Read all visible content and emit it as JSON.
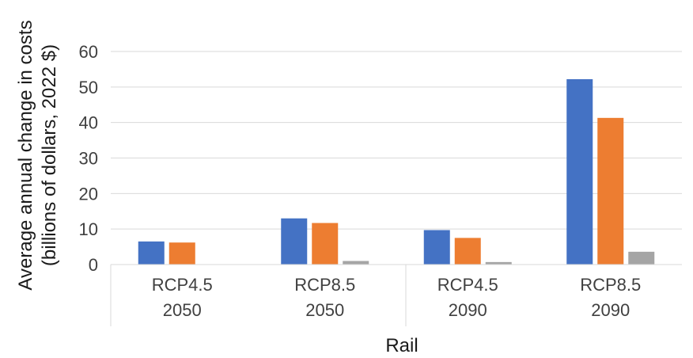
{
  "chart_data": {
    "type": "bar",
    "categories": [
      [
        "RCP4.5",
        "2050"
      ],
      [
        "RCP8.5",
        "2050"
      ],
      [
        "RCP4.5",
        "2090"
      ],
      [
        "RCP8.5",
        "2090"
      ]
    ],
    "series": [
      {
        "color": "#4472C4",
        "values": [
          6.5,
          13,
          9.7,
          52.2
        ]
      },
      {
        "color": "#ED7D31",
        "values": [
          6.2,
          11.7,
          7.5,
          41.3
        ]
      },
      {
        "color": "#A5A5A5",
        "values": [
          0.1,
          1.0,
          0.7,
          3.6
        ]
      }
    ],
    "xlabel": "Rail",
    "ylabel_lines": [
      "Average annual change in costs",
      "(billions of dollars, 2022 $)"
    ],
    "ylim": [
      0,
      60
    ],
    "yticks": [
      0,
      10,
      20,
      30,
      40,
      50,
      60
    ],
    "grid": true,
    "legend": "none"
  }
}
